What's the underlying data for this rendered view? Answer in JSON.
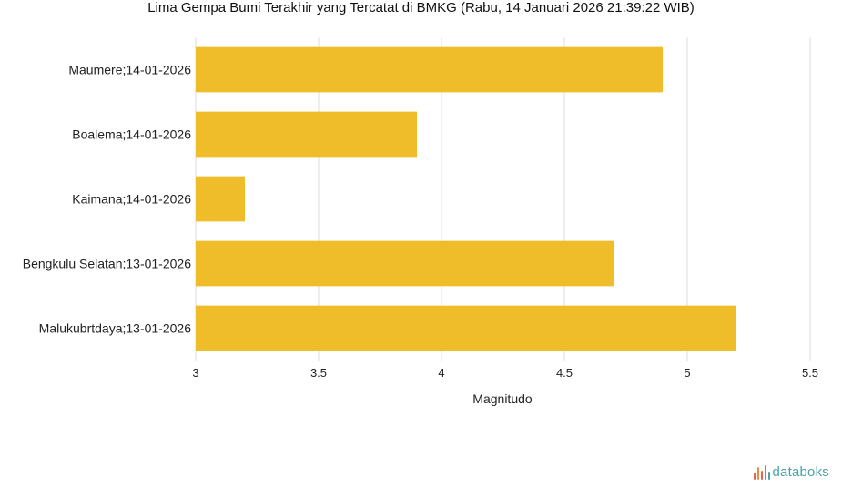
{
  "chart_data": {
    "type": "bar",
    "orientation": "horizontal",
    "title": "Lima Gempa Bumi Terakhir yang Tercatat di BMKG (Rabu, 14 Januari 2026 21:39:22 WIB)",
    "xlabel": "Magnitudo",
    "ylabel": "",
    "categories": [
      "Maumere;14-01-2026",
      "Boalema;14-01-2026",
      "Kaimana;14-01-2026",
      "Bengkulu Selatan;13-01-2026",
      "Malukubrtdaya;13-01-2026"
    ],
    "values": [
      4.9,
      3.9,
      3.2,
      4.7,
      5.2
    ],
    "xlim": [
      3,
      5.5
    ],
    "ticks": [
      "3",
      "3.5",
      "4",
      "4.5",
      "5",
      "5.5"
    ],
    "grid": true,
    "bar_color": "#efbd2a"
  },
  "brand": {
    "name": "databoks",
    "color": "#4aa3a6"
  }
}
